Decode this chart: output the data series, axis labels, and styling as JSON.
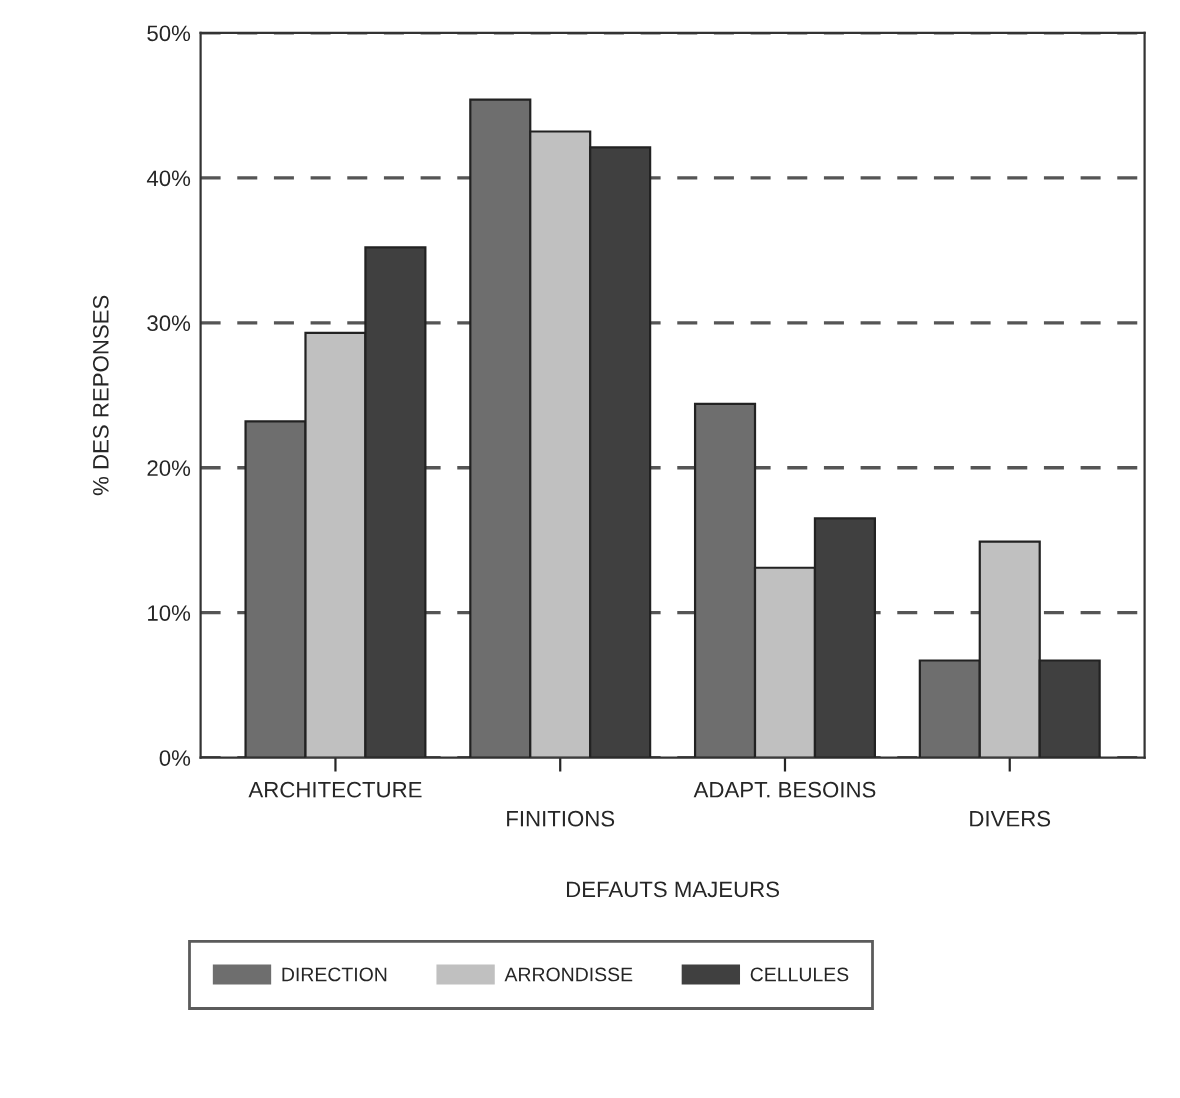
{
  "chart_data": {
    "type": "bar",
    "xlabel": "DEFAUTS MAJEURS",
    "ylabel": "% DES REPONSES",
    "categories": [
      "ARCHITECTURE",
      "FINITIONS",
      "ADAPT. BESOINS",
      "DIVERS"
    ],
    "series": [
      {
        "name": "DIRECTION",
        "color": "#6e6e6e",
        "values": [
          23.2,
          45.4,
          24.4,
          6.7
        ]
      },
      {
        "name": "ARRONDISSE",
        "color": "#c0c0c0",
        "values": [
          29.3,
          43.2,
          13.1,
          14.9
        ]
      },
      {
        "name": "CELLULES",
        "color": "#404040",
        "values": [
          35.2,
          42.1,
          16.5,
          6.7
        ]
      }
    ],
    "ylim": [
      0,
      50
    ],
    "yticks": [
      {
        "value": 0,
        "label": "0%"
      },
      {
        "value": 10,
        "label": "10%"
      },
      {
        "value": 20,
        "label": "20%"
      },
      {
        "value": 30,
        "label": "30%"
      },
      {
        "value": 40,
        "label": "40%"
      },
      {
        "value": 50,
        "label": "50%"
      }
    ],
    "grid": "y",
    "line_style": "dashed",
    "legend": "bottom"
  }
}
